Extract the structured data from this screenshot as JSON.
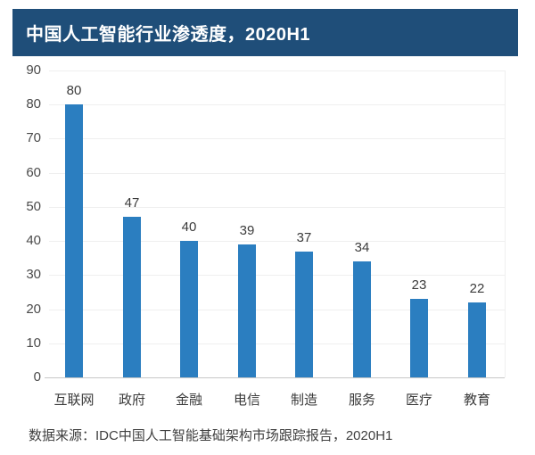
{
  "header": {
    "title": "中国人工智能行业渗透度，2020H1",
    "background": "#1F4E79",
    "text_color": "#FFFFFF"
  },
  "chart_data": {
    "type": "bar",
    "title": "中国人工智能行业渗透度，2020H1",
    "categories": [
      "互联网",
      "政府",
      "金融",
      "电信",
      "制造",
      "服务",
      "医疗",
      "教育"
    ],
    "values": [
      80,
      47,
      40,
      39,
      37,
      34,
      23,
      22
    ],
    "xlabel": "",
    "ylabel": "",
    "ylim": [
      0,
      90
    ],
    "ytick_interval": 10,
    "yticks": [
      0,
      10,
      20,
      30,
      40,
      50,
      60,
      70,
      80,
      90
    ],
    "grid": true,
    "legend": false,
    "value_labels_shown": true,
    "bar_color": "#2B7EC0",
    "gridline_color": "#EFEFEF",
    "baseline_color": "#C8C8C8",
    "axis_label_color": "#4A4A4A",
    "value_label_color": "#3B3B3B"
  },
  "footer": {
    "source": "数据来源：IDC中国人工智能基础架构市场跟踪报告，2020H1",
    "text_color": "#3F3F3F"
  }
}
